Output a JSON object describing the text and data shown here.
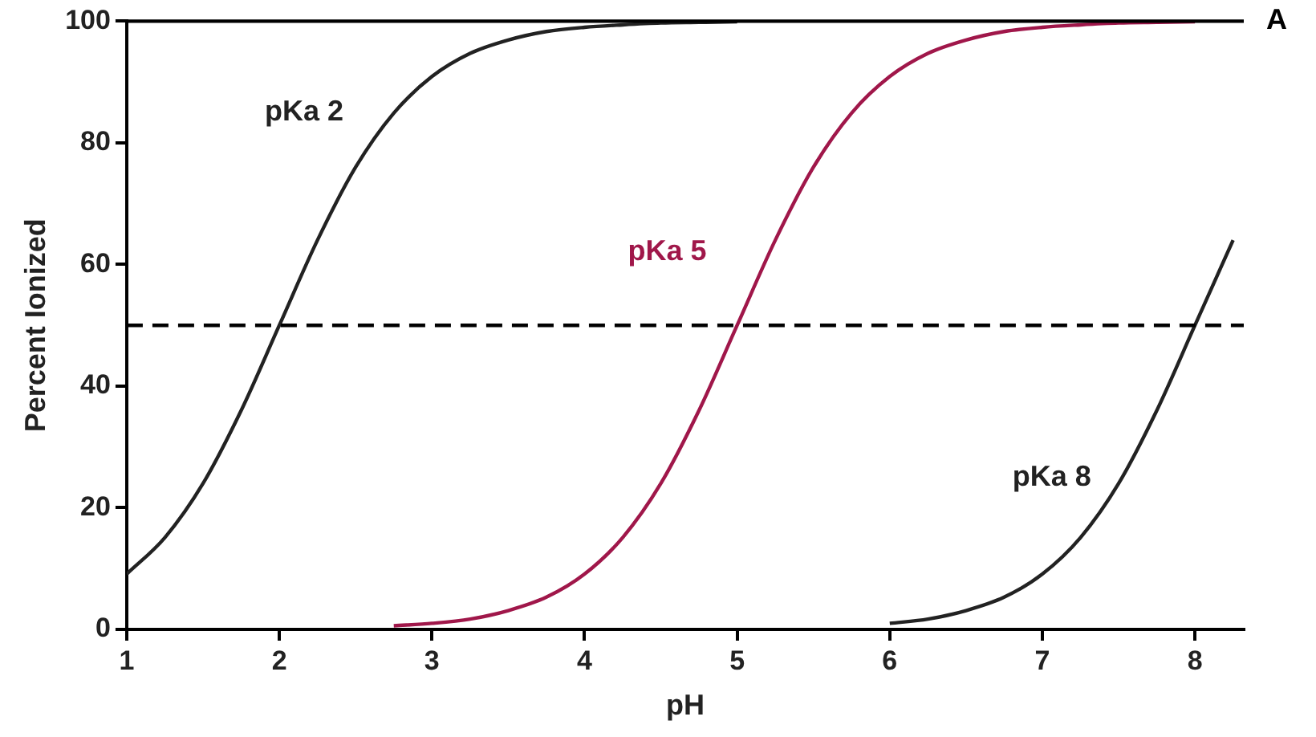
{
  "chart_data": {
    "type": "line",
    "xlabel": "pH",
    "ylabel": "Percent Ionized",
    "xlim": [
      1,
      8.32
    ],
    "xticks": [
      1,
      2,
      3,
      4,
      5,
      6,
      7,
      8
    ],
    "ylim": [
      0,
      100
    ],
    "yticks": [
      0,
      20,
      40,
      60,
      80,
      100
    ],
    "grid": false,
    "legend": false,
    "marker": "none",
    "line_style": "solid",
    "series": [
      {
        "name": "pKa 2",
        "color": "#222222",
        "x": [
          1,
          1.25,
          1.5,
          1.75,
          2,
          2.25,
          2.5,
          2.75,
          3,
          3.25,
          3.5,
          3.75,
          4,
          4.25,
          4.5,
          4.75,
          5
        ],
        "values": [
          9.1,
          15.1,
          24,
          36,
          50,
          64,
          76,
          84.9,
          90.9,
          94.7,
          96.9,
          98.3,
          99,
          99.4,
          99.7,
          99.8,
          99.9
        ]
      },
      {
        "name": "pKa 5",
        "color": "#a0174a",
        "x": [
          2.75,
          3,
          3.25,
          3.5,
          3.75,
          4,
          4.25,
          4.5,
          4.75,
          5,
          5.25,
          5.5,
          5.75,
          6,
          6.25,
          6.5,
          6.75,
          7,
          7.25,
          7.5,
          7.75,
          8
        ],
        "values": [
          0.6,
          1,
          1.7,
          3.1,
          5.3,
          9.1,
          15.1,
          24,
          36,
          50,
          64,
          76,
          84.9,
          90.9,
          94.7,
          96.9,
          98.3,
          99,
          99.4,
          99.7,
          99.8,
          99.9
        ]
      },
      {
        "name": "pKa 8",
        "color": "#222222",
        "x": [
          6,
          6.25,
          6.5,
          6.75,
          7,
          7.25,
          7.5,
          7.75,
          8,
          8.25
        ],
        "values": [
          1,
          1.7,
          3.1,
          5.3,
          9.1,
          15.1,
          24,
          36,
          50,
          64
        ]
      }
    ],
    "ref_lines": [
      {
        "axis": "y",
        "value": 100,
        "line_style": "solid",
        "color": "#000000"
      },
      {
        "axis": "y",
        "value": 50,
        "line_style": "dashed",
        "color": "#000000"
      }
    ],
    "annotations": [
      "A"
    ]
  }
}
